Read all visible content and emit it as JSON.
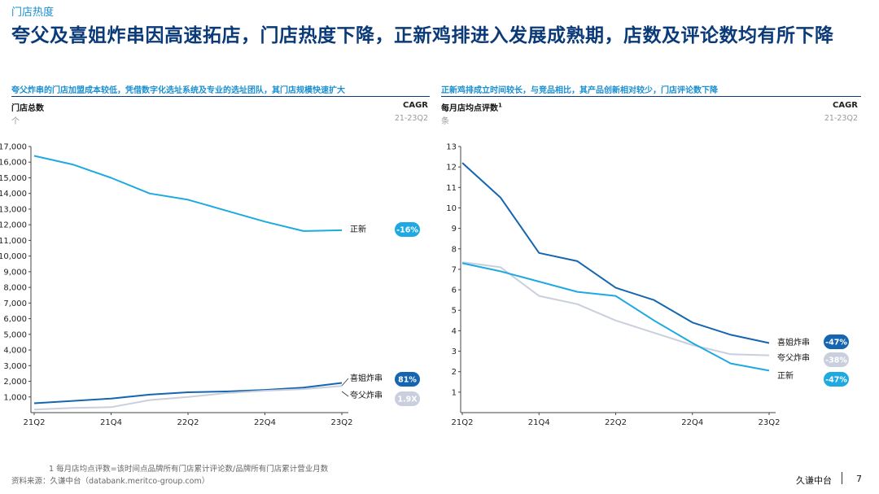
{
  "header": {
    "section": "门店热度",
    "title": "夸父及喜姐炸串因高速拓店，门店热度下降，正新鸡排进入发展成熟期，店数及评论数均有所下降"
  },
  "left_panel": {
    "subtitle": "夸父炸串的门店加盟成本较低，凭借数字化选址系统及专业的选址团队，其门店规模快速扩大",
    "metric": "门店总数",
    "unit": "个",
    "cagr_label": "CAGR",
    "cagr_range": "21-23Q2"
  },
  "right_panel": {
    "subtitle": "正新鸡排成立时间较长，与竞品相比，其产品创新相对较少，门店评论数下降",
    "metric": "每月店均点评数",
    "metric_sup": "1",
    "unit": "条",
    "cagr_label": "CAGR",
    "cagr_range": "21-23Q2"
  },
  "chart_data": [
    {
      "type": "line",
      "title": "门店总数",
      "ylabel": "个",
      "x": [
        "21Q2",
        "21Q3",
        "21Q4",
        "22Q1",
        "22Q2",
        "22Q3",
        "22Q4",
        "23Q1",
        "23Q2"
      ],
      "x_tick_labels": [
        "21Q2",
        "21Q4",
        "22Q2",
        "22Q4",
        "23Q2"
      ],
      "ylim": [
        0,
        17000
      ],
      "y_ticks": [
        1000,
        2000,
        3000,
        4000,
        5000,
        6000,
        7000,
        8000,
        9000,
        10000,
        11000,
        12000,
        13000,
        14000,
        15000,
        16000,
        17000
      ],
      "y_tick_labels": [
        "1,000",
        "2,000",
        "3,000",
        "4,000",
        "5,000",
        "6,000",
        "7,000",
        "8,000",
        "9,000",
        "10,000",
        "11,000",
        "12,000",
        "13,000",
        "14,000",
        "15,000",
        "16,000",
        "17,000"
      ],
      "series": [
        {
          "name": "正新",
          "color": "#1fa9e1",
          "cagr": "-16%",
          "badge_color": "#1fa9e1",
          "x_index": [
            0,
            1,
            2,
            3,
            4,
            5,
            6,
            7,
            8
          ],
          "values": [
            16400,
            15850,
            15000,
            14000,
            13600,
            12900,
            12200,
            11600,
            11650
          ]
        },
        {
          "name": "喜姐炸串",
          "color": "#1565b0",
          "cagr": "81%",
          "badge_color": "#1565b0",
          "x_index": [
            0,
            1,
            2,
            3,
            4,
            5,
            6,
            7,
            8
          ],
          "values": [
            600,
            750,
            900,
            1150,
            1300,
            1350,
            1450,
            1600,
            1900
          ]
        },
        {
          "name": "夸父炸串",
          "color": "#c9cfdc",
          "cagr": "1.9X",
          "badge_color": "#c9cfdc",
          "x_index": [
            0,
            1,
            2,
            3,
            4,
            5,
            6,
            7,
            8
          ],
          "values": [
            200,
            300,
            350,
            800,
            1000,
            1250,
            1400,
            1500,
            1700
          ]
        }
      ]
    },
    {
      "type": "line",
      "title": "每月店均点评数",
      "ylabel": "条",
      "x": [
        "21Q2",
        "21Q3",
        "21Q4",
        "22Q1",
        "22Q2",
        "22Q3",
        "22Q4",
        "23Q1",
        "23Q2"
      ],
      "x_tick_labels": [
        "21Q2",
        "21Q4",
        "22Q2",
        "22Q4",
        "23Q2"
      ],
      "ylim": [
        0,
        13
      ],
      "y_ticks": [
        1,
        2,
        3,
        4,
        5,
        6,
        7,
        8,
        9,
        10,
        11,
        12,
        13
      ],
      "y_tick_labels": [
        "1",
        "2",
        "3",
        "4",
        "5",
        "6",
        "7",
        "8",
        "9",
        "10",
        "11",
        "12",
        "13"
      ],
      "series": [
        {
          "name": "喜姐炸串",
          "color": "#1565b0",
          "cagr": "-47%",
          "badge_color": "#1565b0",
          "x_index": [
            0,
            1,
            2,
            3,
            4,
            5,
            6,
            7,
            8
          ],
          "values": [
            12.2,
            10.5,
            7.8,
            7.4,
            6.1,
            5.5,
            4.4,
            3.8,
            3.4
          ]
        },
        {
          "name": "夸父炸串",
          "color": "#c9cfdc",
          "cagr": "-38%",
          "badge_color": "#c9cfdc",
          "x_index": [
            0,
            1,
            2,
            3,
            4,
            5,
            6,
            7,
            8
          ],
          "values": [
            7.35,
            7.1,
            5.7,
            5.3,
            4.5,
            3.9,
            3.3,
            2.85,
            2.8
          ]
        },
        {
          "name": "正新",
          "color": "#1fa9e1",
          "cagr": "-47%",
          "badge_color": "#1fa9e1",
          "x_index": [
            0,
            1,
            2,
            3,
            4,
            5,
            6,
            7,
            8
          ],
          "values": [
            7.3,
            6.9,
            6.4,
            5.9,
            5.7,
            4.5,
            3.4,
            2.4,
            2.05
          ]
        }
      ]
    }
  ],
  "footer": {
    "footnote": "1  每月店均点评数=该时间点品牌所有门店累计评论数/品牌所有门店累计营业月数",
    "source": "资料来源：久谦中台（databank.meritco-group.com）",
    "brand": "久谦中台",
    "page": "7"
  }
}
